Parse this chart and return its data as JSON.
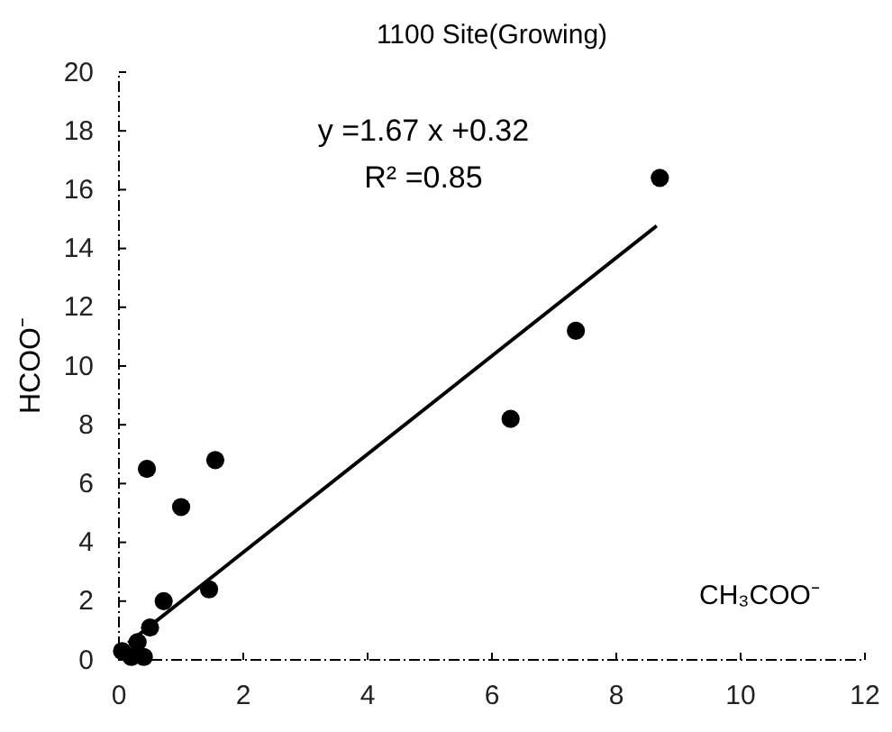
{
  "chart_data": {
    "type": "scatter",
    "title": "1100 Site(Growing)",
    "xlabel": "CH₃COO⁻",
    "ylabel": "HCOO⁻",
    "xlim": [
      0,
      12
    ],
    "ylim": [
      0,
      20
    ],
    "xticks": [
      0,
      2,
      4,
      6,
      8,
      10,
      12
    ],
    "yticks": [
      0,
      2,
      4,
      6,
      8,
      10,
      12,
      14,
      16,
      18,
      20
    ],
    "grid": false,
    "marker": "circle",
    "annotations": [
      "y =1.67 x +0.32",
      "R² =0.85"
    ],
    "series": [
      {
        "color": "#000000",
        "x": [
          8.7,
          7.35,
          6.3,
          1.55,
          0.45,
          1.0,
          0.72,
          1.45,
          0.5,
          0.05,
          0.3,
          0.4,
          0.2
        ],
        "values": [
          16.4,
          11.2,
          8.2,
          6.8,
          6.5,
          5.2,
          2.0,
          2.4,
          1.1,
          0.3,
          0.6,
          0.1,
          0.1
        ]
      },
      {
        "type": "line",
        "color": "#000000",
        "line_style": "solid",
        "marker": "none",
        "x": [
          0.15,
          8.65
        ],
        "values": [
          0.57,
          14.77
        ]
      }
    ]
  }
}
